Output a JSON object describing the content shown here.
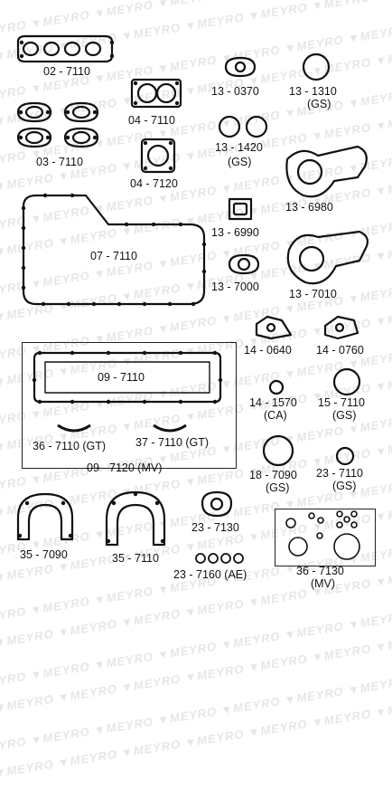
{
  "watermark": "MEYRO",
  "labels": {
    "p02_7110": "02 - 7110",
    "p03_7110": "03 - 7110",
    "p04_7110": "04 - 7110",
    "p04_7120": "04 - 7120",
    "p07_7110": "07 - 7110",
    "p09_7110": "09 - 7110",
    "p09_7120": "09 - 7120 (MV)",
    "p13_0370": "13 - 0370",
    "p13_1310": "13 - 1310",
    "p13_1310_sub": "(GS)",
    "p13_1420": "13 - 1420",
    "p13_1420_sub": "(GS)",
    "p13_6980": "13 - 6980",
    "p13_6990": "13 - 6990",
    "p13_7000": "13 - 7000",
    "p13_7010": "13 - 7010",
    "p14_0640": "14 - 0640",
    "p14_0760": "14 - 0760",
    "p14_1570": "14 - 1570",
    "p14_1570_sub": "(CA)",
    "p15_7110": "15 - 7110",
    "p15_7110_sub": "(GS)",
    "p18_7090": "18 - 7090",
    "p18_7090_sub": "(GS)",
    "p23_7110": "23 - 7110",
    "p23_7110_sub": "(GS)",
    "p23_7130": "23 - 7130",
    "p23_7160": "23 - 7160 (AE)",
    "p35_7090": "35 - 7090",
    "p35_7110": "35 - 7110",
    "p36_7110": "36 - 7110 (GT)",
    "p37_7110": "37 - 7110 (GT)",
    "p36_7130": "36 - 7130",
    "p36_7130_sub": "(MV)"
  }
}
